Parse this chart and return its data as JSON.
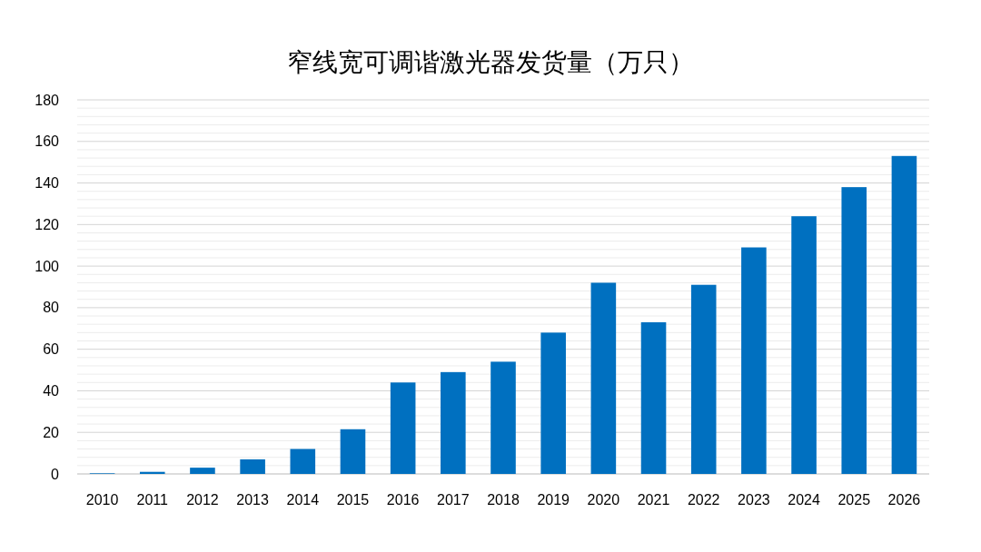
{
  "chart_data": {
    "type": "bar",
    "title": "窄线宽可调谐激光器发货量（万只）",
    "categories": [
      "2010",
      "2011",
      "2012",
      "2013",
      "2014",
      "2015",
      "2016",
      "2017",
      "2018",
      "2019",
      "2020",
      "2021",
      "2022",
      "2023",
      "2024",
      "2025",
      "2026"
    ],
    "values": [
      0.3,
      1,
      3,
      7,
      12,
      21.5,
      44,
      49,
      54,
      68,
      92,
      73,
      91,
      109,
      124,
      138,
      153
    ],
    "color": "#0070c0",
    "ylim": [
      0,
      180
    ],
    "yticks": [
      0,
      {
        "value": 4,
        "label": null
      },
      {
        "value": 8,
        "label": null
      },
      {
        "value": 12,
        "label": null
      },
      {
        "value": 16,
        "label": null
      },
      20,
      {
        "value": 24,
        "label": null
      },
      {
        "value": 28,
        "label": null
      },
      {
        "value": 32,
        "label": null
      },
      {
        "value": 36,
        "label": null
      },
      40,
      {
        "value": 44,
        "label": null
      },
      {
        "value": 48,
        "label": null
      },
      {
        "value": 52,
        "label": null
      },
      {
        "value": 56,
        "label": null
      },
      60,
      {
        "value": 64,
        "label": null
      },
      {
        "value": 68,
        "label": null
      },
      {
        "value": 72,
        "label": null
      },
      {
        "value": 76,
        "label": null
      },
      80,
      {
        "value": 84,
        "label": null
      },
      {
        "value": 88,
        "label": null
      },
      {
        "value": 92,
        "label": null
      },
      {
        "value": 96,
        "label": null
      },
      100,
      {
        "value": 104,
        "label": null
      },
      {
        "value": 108,
        "label": null
      },
      {
        "value": 112,
        "label": null
      },
      {
        "value": 116,
        "label": null
      },
      120,
      {
        "value": 124,
        "label": null
      },
      {
        "value": 128,
        "label": null
      },
      {
        "value": 132,
        "label": null
      },
      {
        "value": 136,
        "label": null
      },
      140,
      {
        "value": 144,
        "label": null
      },
      {
        "value": 148,
        "label": null
      },
      {
        "value": 152,
        "label": null
      },
      {
        "value": 156,
        "label": null
      },
      160,
      {
        "value": 164,
        "label": null
      },
      {
        "value": 168,
        "label": null
      },
      {
        "value": 172,
        "label": null
      },
      {
        "value": 176,
        "label": null
      },
      180
    ],
    "grid": "y"
  }
}
